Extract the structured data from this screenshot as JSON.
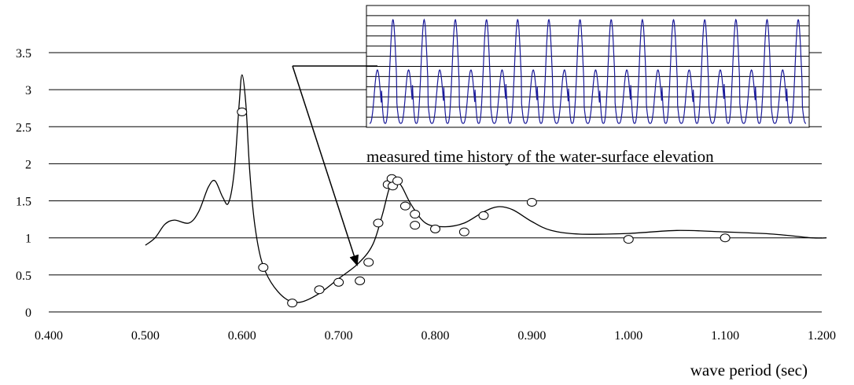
{
  "chart_data": {
    "type": "line",
    "title": "",
    "xlabel": "wave period (sec)",
    "ylabel": "",
    "xlim": [
      0.4,
      1.2
    ],
    "ylim": [
      0,
      3.5
    ],
    "x_ticks": [
      "0.400",
      "0.500",
      "0.600",
      "0.700",
      "0.800",
      "0.900",
      "1.000",
      "1.100",
      "1.200"
    ],
    "y_ticks": [
      "0",
      "0.5",
      "1",
      "1.5",
      "2",
      "2.5",
      "3",
      "3.5"
    ],
    "grid": "horizontal",
    "series": [
      {
        "kind": "line",
        "points": [
          [
            0.5,
            0.9
          ],
          [
            0.51,
            1.0
          ],
          [
            0.52,
            1.18
          ],
          [
            0.53,
            1.24
          ],
          [
            0.545,
            1.2
          ],
          [
            0.555,
            1.35
          ],
          [
            0.565,
            1.68
          ],
          [
            0.572,
            1.77
          ],
          [
            0.58,
            1.55
          ],
          [
            0.586,
            1.47
          ],
          [
            0.592,
            1.9
          ],
          [
            0.597,
            2.8
          ],
          [
            0.6,
            3.2
          ],
          [
            0.604,
            2.8
          ],
          [
            0.608,
            1.9
          ],
          [
            0.613,
            1.2
          ],
          [
            0.62,
            0.7
          ],
          [
            0.63,
            0.4
          ],
          [
            0.645,
            0.18
          ],
          [
            0.66,
            0.13
          ],
          [
            0.68,
            0.25
          ],
          [
            0.7,
            0.45
          ],
          [
            0.72,
            0.65
          ],
          [
            0.735,
            0.9
          ],
          [
            0.745,
            1.3
          ],
          [
            0.752,
            1.65
          ],
          [
            0.758,
            1.78
          ],
          [
            0.765,
            1.7
          ],
          [
            0.775,
            1.45
          ],
          [
            0.79,
            1.2
          ],
          [
            0.81,
            1.15
          ],
          [
            0.83,
            1.2
          ],
          [
            0.85,
            1.35
          ],
          [
            0.865,
            1.42
          ],
          [
            0.88,
            1.38
          ],
          [
            0.9,
            1.22
          ],
          [
            0.92,
            1.1
          ],
          [
            0.95,
            1.05
          ],
          [
            1.0,
            1.06
          ],
          [
            1.05,
            1.1
          ],
          [
            1.1,
            1.08
          ],
          [
            1.15,
            1.05
          ],
          [
            1.19,
            1.0
          ],
          [
            1.205,
            1.0
          ]
        ]
      },
      {
        "kind": "scatter",
        "points": [
          [
            0.6,
            2.7
          ],
          [
            0.622,
            0.6
          ],
          [
            0.652,
            0.12
          ],
          [
            0.68,
            0.3
          ],
          [
            0.7,
            0.4
          ],
          [
            0.722,
            0.42
          ],
          [
            0.731,
            0.67
          ],
          [
            0.741,
            1.2
          ],
          [
            0.751,
            1.72
          ],
          [
            0.755,
            1.8
          ],
          [
            0.756,
            1.7
          ],
          [
            0.761,
            1.77
          ],
          [
            0.769,
            1.43
          ],
          [
            0.779,
            1.32
          ],
          [
            0.779,
            1.17
          ],
          [
            0.8,
            1.12
          ],
          [
            0.83,
            1.08
          ],
          [
            0.85,
            1.3
          ],
          [
            0.9,
            1.48
          ],
          [
            1.0,
            0.98
          ],
          [
            1.1,
            1.0
          ]
        ]
      }
    ],
    "annotations": [
      {
        "text": "measured time history of the water-surface elevation"
      }
    ],
    "inset": {
      "type": "line",
      "color": "#1a1a9a",
      "description_visible_text": "",
      "cycles": 14
    }
  }
}
